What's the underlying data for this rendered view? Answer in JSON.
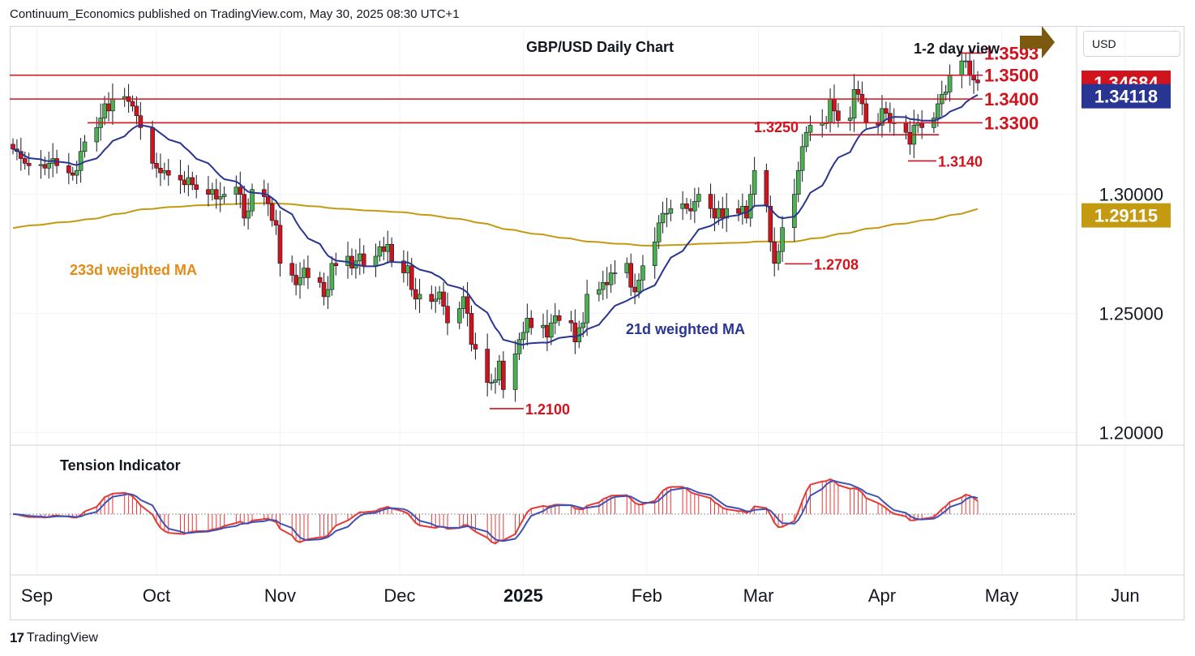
{
  "header": {
    "published": "Continuum_Economics published on TradingView.com, May 30, 2025 08:30 UTC+1"
  },
  "footer": {
    "brand": "TradingView",
    "brand_mark": "17"
  },
  "axis_button": "USD",
  "colors": {
    "level_red": "#d1131d",
    "ma21": "#283593",
    "ma233": "#c49a11",
    "ma233_label": "#e48a15",
    "bull": "#4caf50",
    "bear": "#d1131d",
    "arrow": "#7b5a10"
  },
  "chart_data": {
    "type": "candlestick",
    "title": "GBP/USD Daily Chart",
    "view_label": "1-2 day view",
    "view_direction": "right",
    "ylim": [
      1.195,
      1.37
    ],
    "y_ticks": [
      "1.20000",
      "1.25000",
      "1.30000"
    ],
    "x_ticks": [
      "Sep",
      "Oct",
      "Nov",
      "Dec",
      "2025",
      "Feb",
      "Mar",
      "Apr",
      "May",
      "Jun"
    ],
    "x_tick_dates": [
      "2024-09-01",
      "2024-10-01",
      "2024-11-01",
      "2024-12-01",
      "2025-01-01",
      "2025-02-01",
      "2025-03-01",
      "2025-04-01",
      "2025-05-01",
      "2025-06-01"
    ],
    "price_badges": [
      {
        "value": "1.34684",
        "series": "price"
      },
      {
        "value": "1.34118",
        "series": "21d weighted MA"
      },
      {
        "value": "1.29115",
        "series": "233d weighted MA"
      }
    ],
    "resistance_levels": [
      "1.3593",
      "1.3500",
      "1.3400",
      "1.3300"
    ],
    "annotated_levels": [
      "1.3250",
      "1.3140",
      "1.2708",
      "1.2100"
    ],
    "series": [
      {
        "name": "21d weighted MA",
        "label": "21d weighted MA"
      },
      {
        "name": "233d weighted MA",
        "label": "233d weighted MA"
      }
    ],
    "ohlc": {
      "start_date": "2024-08-26",
      "closes": [
        1.319,
        1.318,
        1.315,
        1.313,
        1.312,
        1.3125,
        1.311,
        1.313,
        1.315,
        1.312,
        1.309,
        1.308,
        1.31,
        1.318,
        1.322,
        1.328,
        1.332,
        1.338,
        1.335,
        1.34,
        1.341,
        1.339,
        1.337,
        1.333,
        1.328,
        1.313,
        1.311,
        1.309,
        1.31,
        1.308,
        1.306,
        1.304,
        1.307,
        1.304,
        1.302,
        1.3,
        1.302,
        1.298,
        1.299,
        1.3,
        1.303,
        1.3,
        1.29,
        1.293,
        1.302,
        1.299,
        1.296,
        1.289,
        1.287,
        1.271,
        1.266,
        1.262,
        1.265,
        1.269,
        1.265,
        1.263,
        1.257,
        1.26,
        1.271,
        1.27,
        1.274,
        1.269,
        1.272,
        1.275,
        1.27,
        1.274,
        1.278,
        1.276,
        1.279,
        1.272,
        1.267,
        1.27,
        1.26,
        1.256,
        1.258,
        1.255,
        1.256,
        1.259,
        1.253,
        1.246,
        1.252,
        1.257,
        1.25,
        1.237,
        1.235,
        1.221,
        1.221,
        1.222,
        1.23,
        1.218,
        1.233,
        1.239,
        1.242,
        1.248,
        1.244,
        1.245,
        1.24,
        1.246,
        1.249,
        1.247,
        1.246,
        1.238,
        1.244,
        1.246,
        1.258,
        1.26,
        1.263,
        1.262,
        1.267,
        1.267,
        1.271,
        1.261,
        1.259,
        1.264,
        1.27,
        1.28,
        1.288,
        1.292,
        1.292,
        1.294,
        1.296,
        1.294,
        1.293,
        1.297,
        1.3,
        1.294,
        1.29,
        1.294,
        1.29,
        1.294,
        1.292,
        1.295,
        1.29,
        1.3,
        1.31,
        1.295,
        1.28,
        1.271,
        1.276,
        1.286,
        1.3,
        1.31,
        1.32,
        1.326,
        1.329,
        1.33,
        1.33,
        1.34,
        1.335,
        1.331,
        1.332,
        1.344,
        1.342,
        1.338,
        1.33,
        1.329,
        1.336,
        1.334,
        1.33,
        1.33,
        1.326,
        1.321,
        1.329,
        1.33,
        1.328,
        1.332,
        1.338,
        1.342,
        1.343,
        1.35,
        1.356,
        1.356,
        1.35,
        1.348,
        1.3468
      ]
    },
    "indicator": {
      "label": "Tension Indicator",
      "ylim": [
        -1,
        1
      ]
    }
  }
}
